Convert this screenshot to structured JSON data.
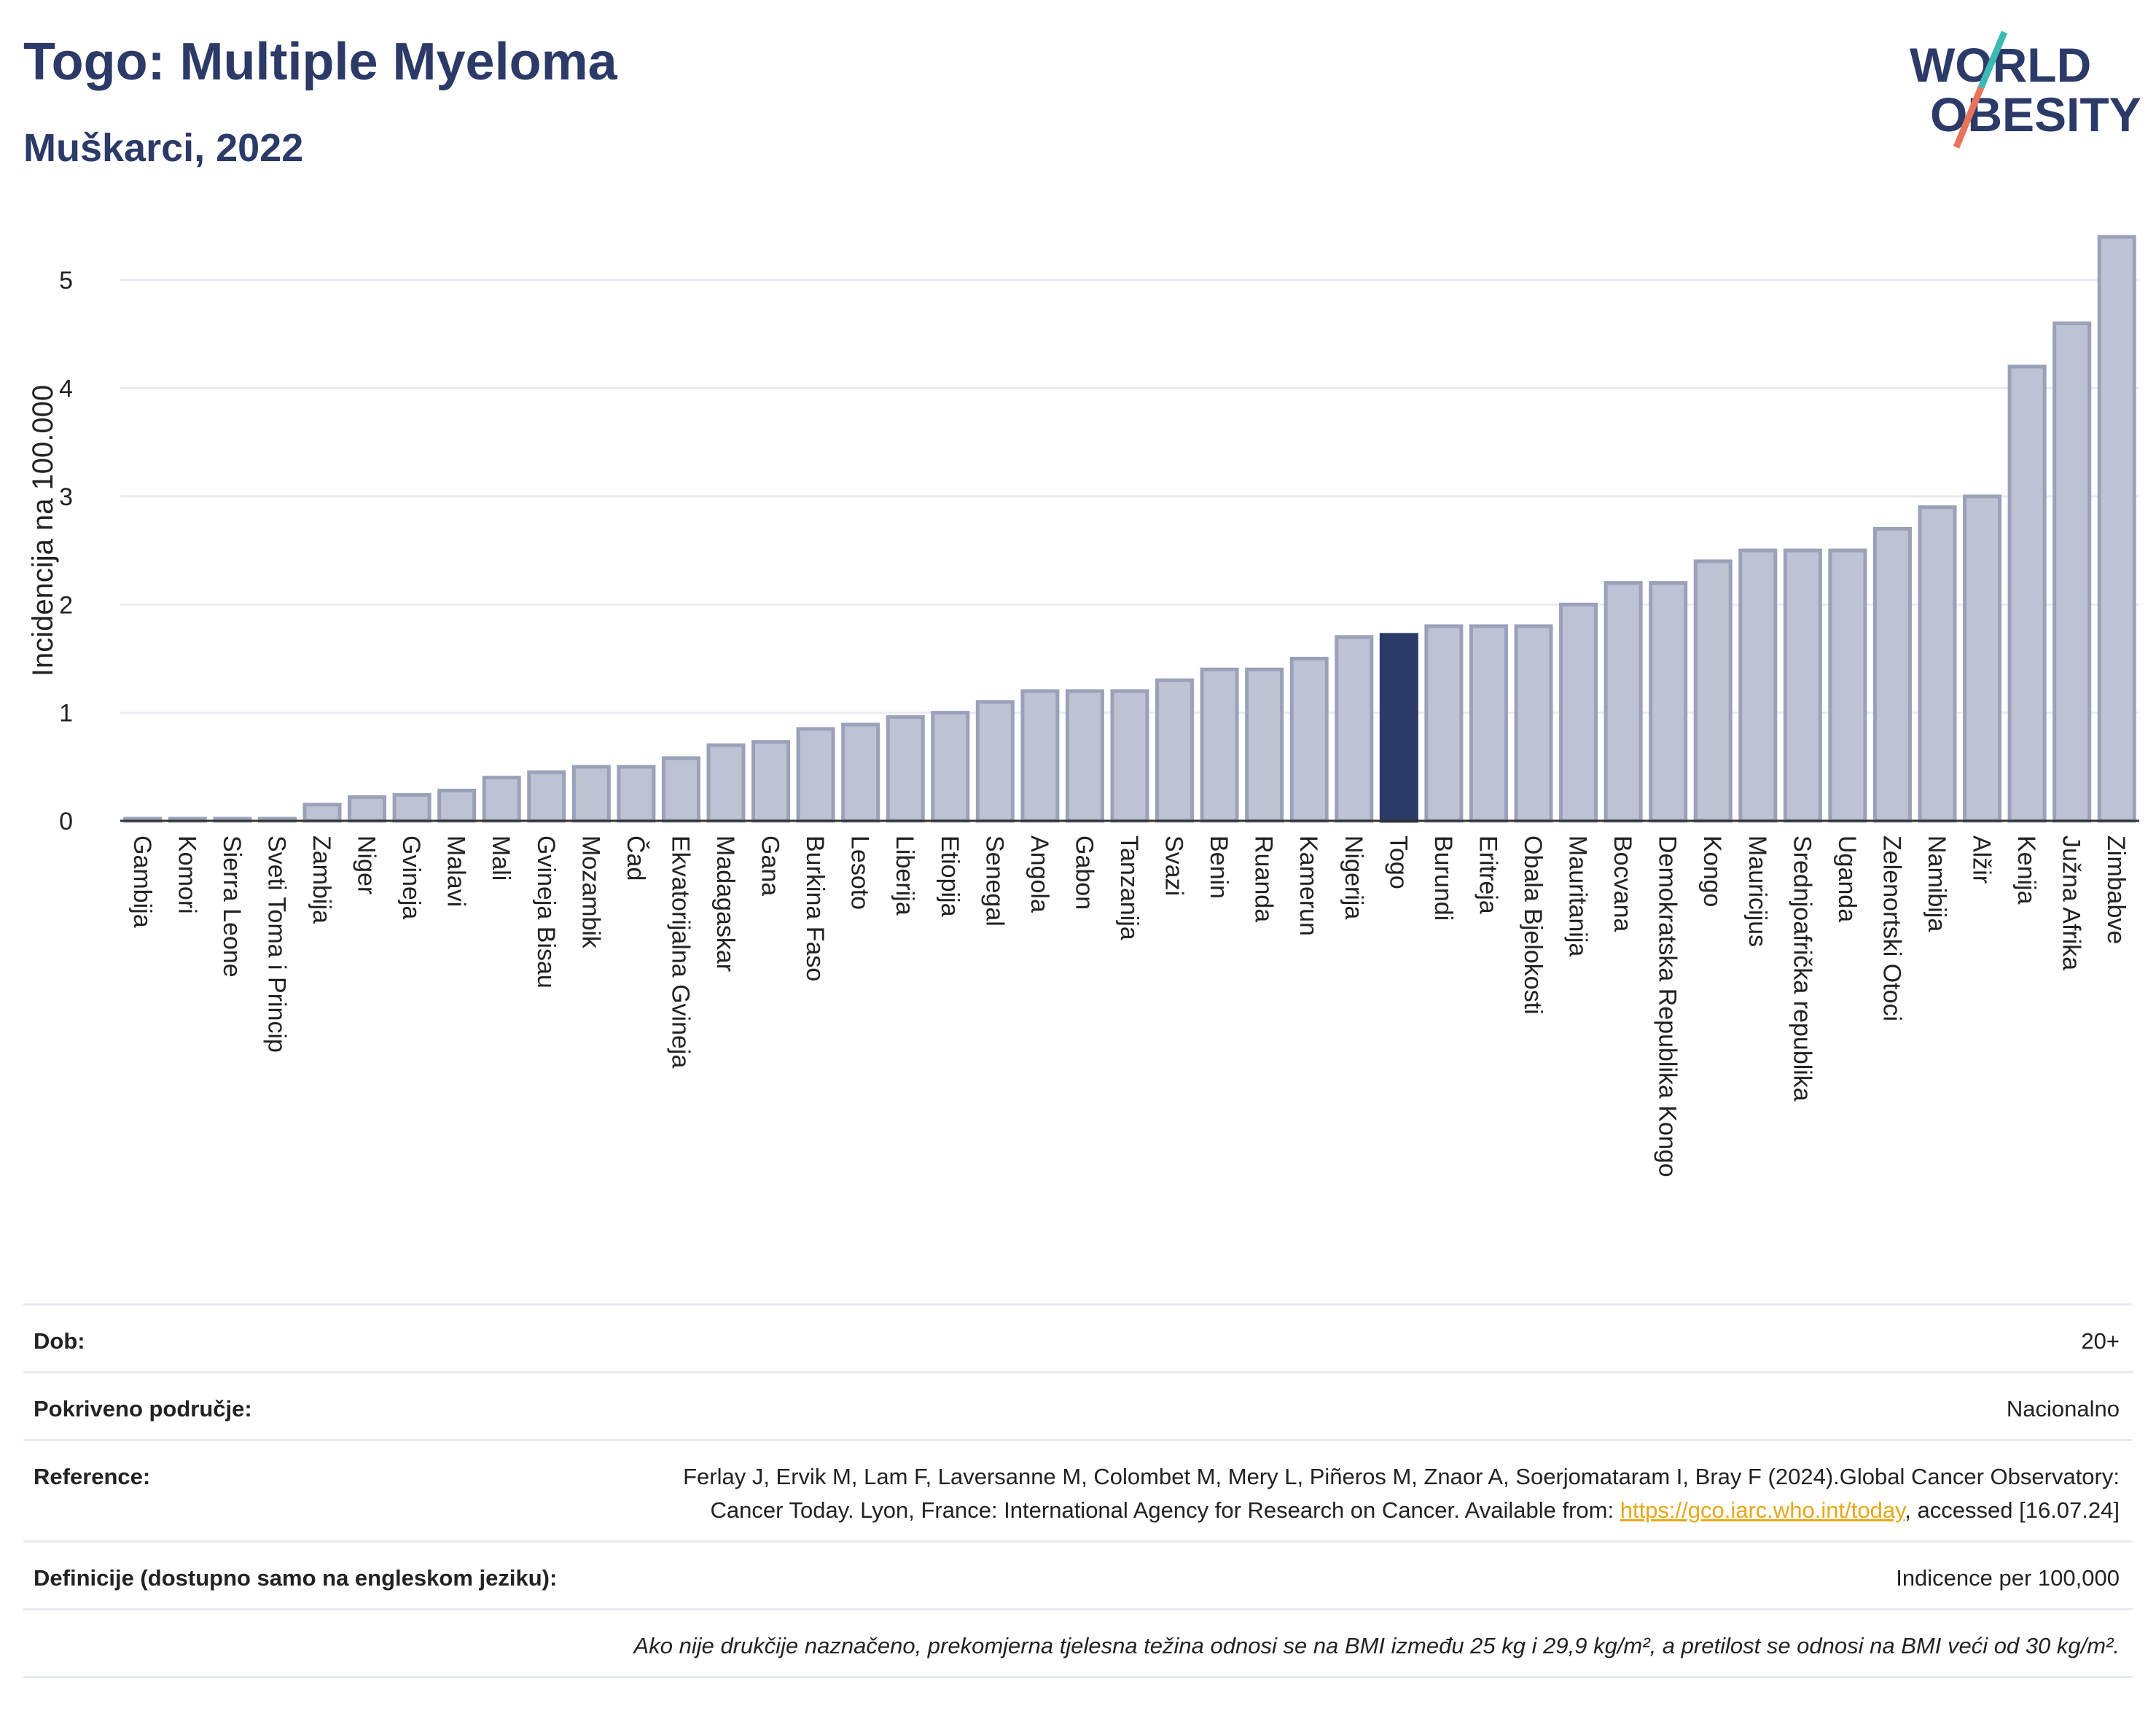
{
  "header": {
    "title": "Togo: Multiple Myeloma",
    "subtitle": "Muškarci, 2022"
  },
  "logo": {
    "line1": "WORLD",
    "line2": "OBESITY",
    "colors": {
      "text": "#2b3a67",
      "slash_top": "#3cb9b3",
      "slash_bottom": "#e8735a"
    }
  },
  "chart_data": {
    "type": "bar",
    "ylabel": "Incidencija na 100.000",
    "ylim": [
      0,
      5.5
    ],
    "yticks": [
      0,
      1,
      2,
      3,
      4,
      5
    ],
    "highlight": "Togo",
    "colors": {
      "bar": "#bec3d3",
      "bar_edge": "#9aa1b9",
      "highlight": "#2b3a67",
      "grid": "#e8ebf2"
    },
    "categories": [
      "Gambija",
      "Komori",
      "Sierra Leone",
      "Sveti Toma i Princip",
      "Zambija",
      "Niger",
      "Gvineja",
      "Malavi",
      "Mali",
      "Gvineja Bisau",
      "Mozambik",
      "Čad",
      "Ekvatorijalna Gvineja",
      "Madagaskar",
      "Gana",
      "Burkina Faso",
      "Lesoto",
      "Liberija",
      "Etiopija",
      "Senegal",
      "Angola",
      "Gabon",
      "Tanzanija",
      "Svazi",
      "Benin",
      "Ruanda",
      "Kamerun",
      "Nigerija",
      "Togo",
      "Burundi",
      "Eritreja",
      "Obala Bjelokosti",
      "Mauritanija",
      "Bocvana",
      "Demokratska Republika Kongo",
      "Kongo",
      "Mauricijus",
      "Srednjoafrička republika",
      "Uganda",
      "Zelenortski Otoci",
      "Namibija",
      "Alžir",
      "Kenija",
      "Južna Afrika",
      "Zimbabve"
    ],
    "values": [
      0.02,
      0.02,
      0.02,
      0.02,
      0.15,
      0.22,
      0.24,
      0.28,
      0.4,
      0.45,
      0.5,
      0.5,
      0.58,
      0.7,
      0.73,
      0.85,
      0.89,
      0.96,
      1.0,
      1.1,
      1.2,
      1.2,
      1.2,
      1.3,
      1.4,
      1.4,
      1.5,
      1.7,
      1.72,
      1.8,
      1.8,
      1.8,
      2.0,
      2.2,
      2.2,
      2.4,
      2.5,
      2.5,
      2.5,
      2.7,
      2.9,
      3.0,
      4.2,
      4.6,
      5.4
    ]
  },
  "info": {
    "age": {
      "label": "Dob:",
      "value": "20+"
    },
    "coverage": {
      "label": "Pokriveno područje:",
      "value": "Nacionalno"
    },
    "references": {
      "label": "Reference:",
      "text_before": "Ferlay J, Ervik M, Lam F, Laversanne M, Colombet M, Mery L, Piñeros M, Znaor A, Soerjomataram I, Bray F (2024).Global Cancer Observatory: Cancer Today. Lyon, France: International Agency for Research on Cancer. Available from: ",
      "link": "https://gco.iarc.who.int/today",
      "text_after": ", accessed [16.07.24]"
    },
    "definitions": {
      "label": "Definicije (dostupno samo na engleskom jeziku):",
      "value": "Indicence per 100,000"
    },
    "note": "Ako nije drukčije naznačeno, prekomjerna tjelesna težina odnosi se na BMI između 25 kg i 29,9 kg/m², a pretilost se odnosi na BMI veći od 30 kg/m²."
  }
}
